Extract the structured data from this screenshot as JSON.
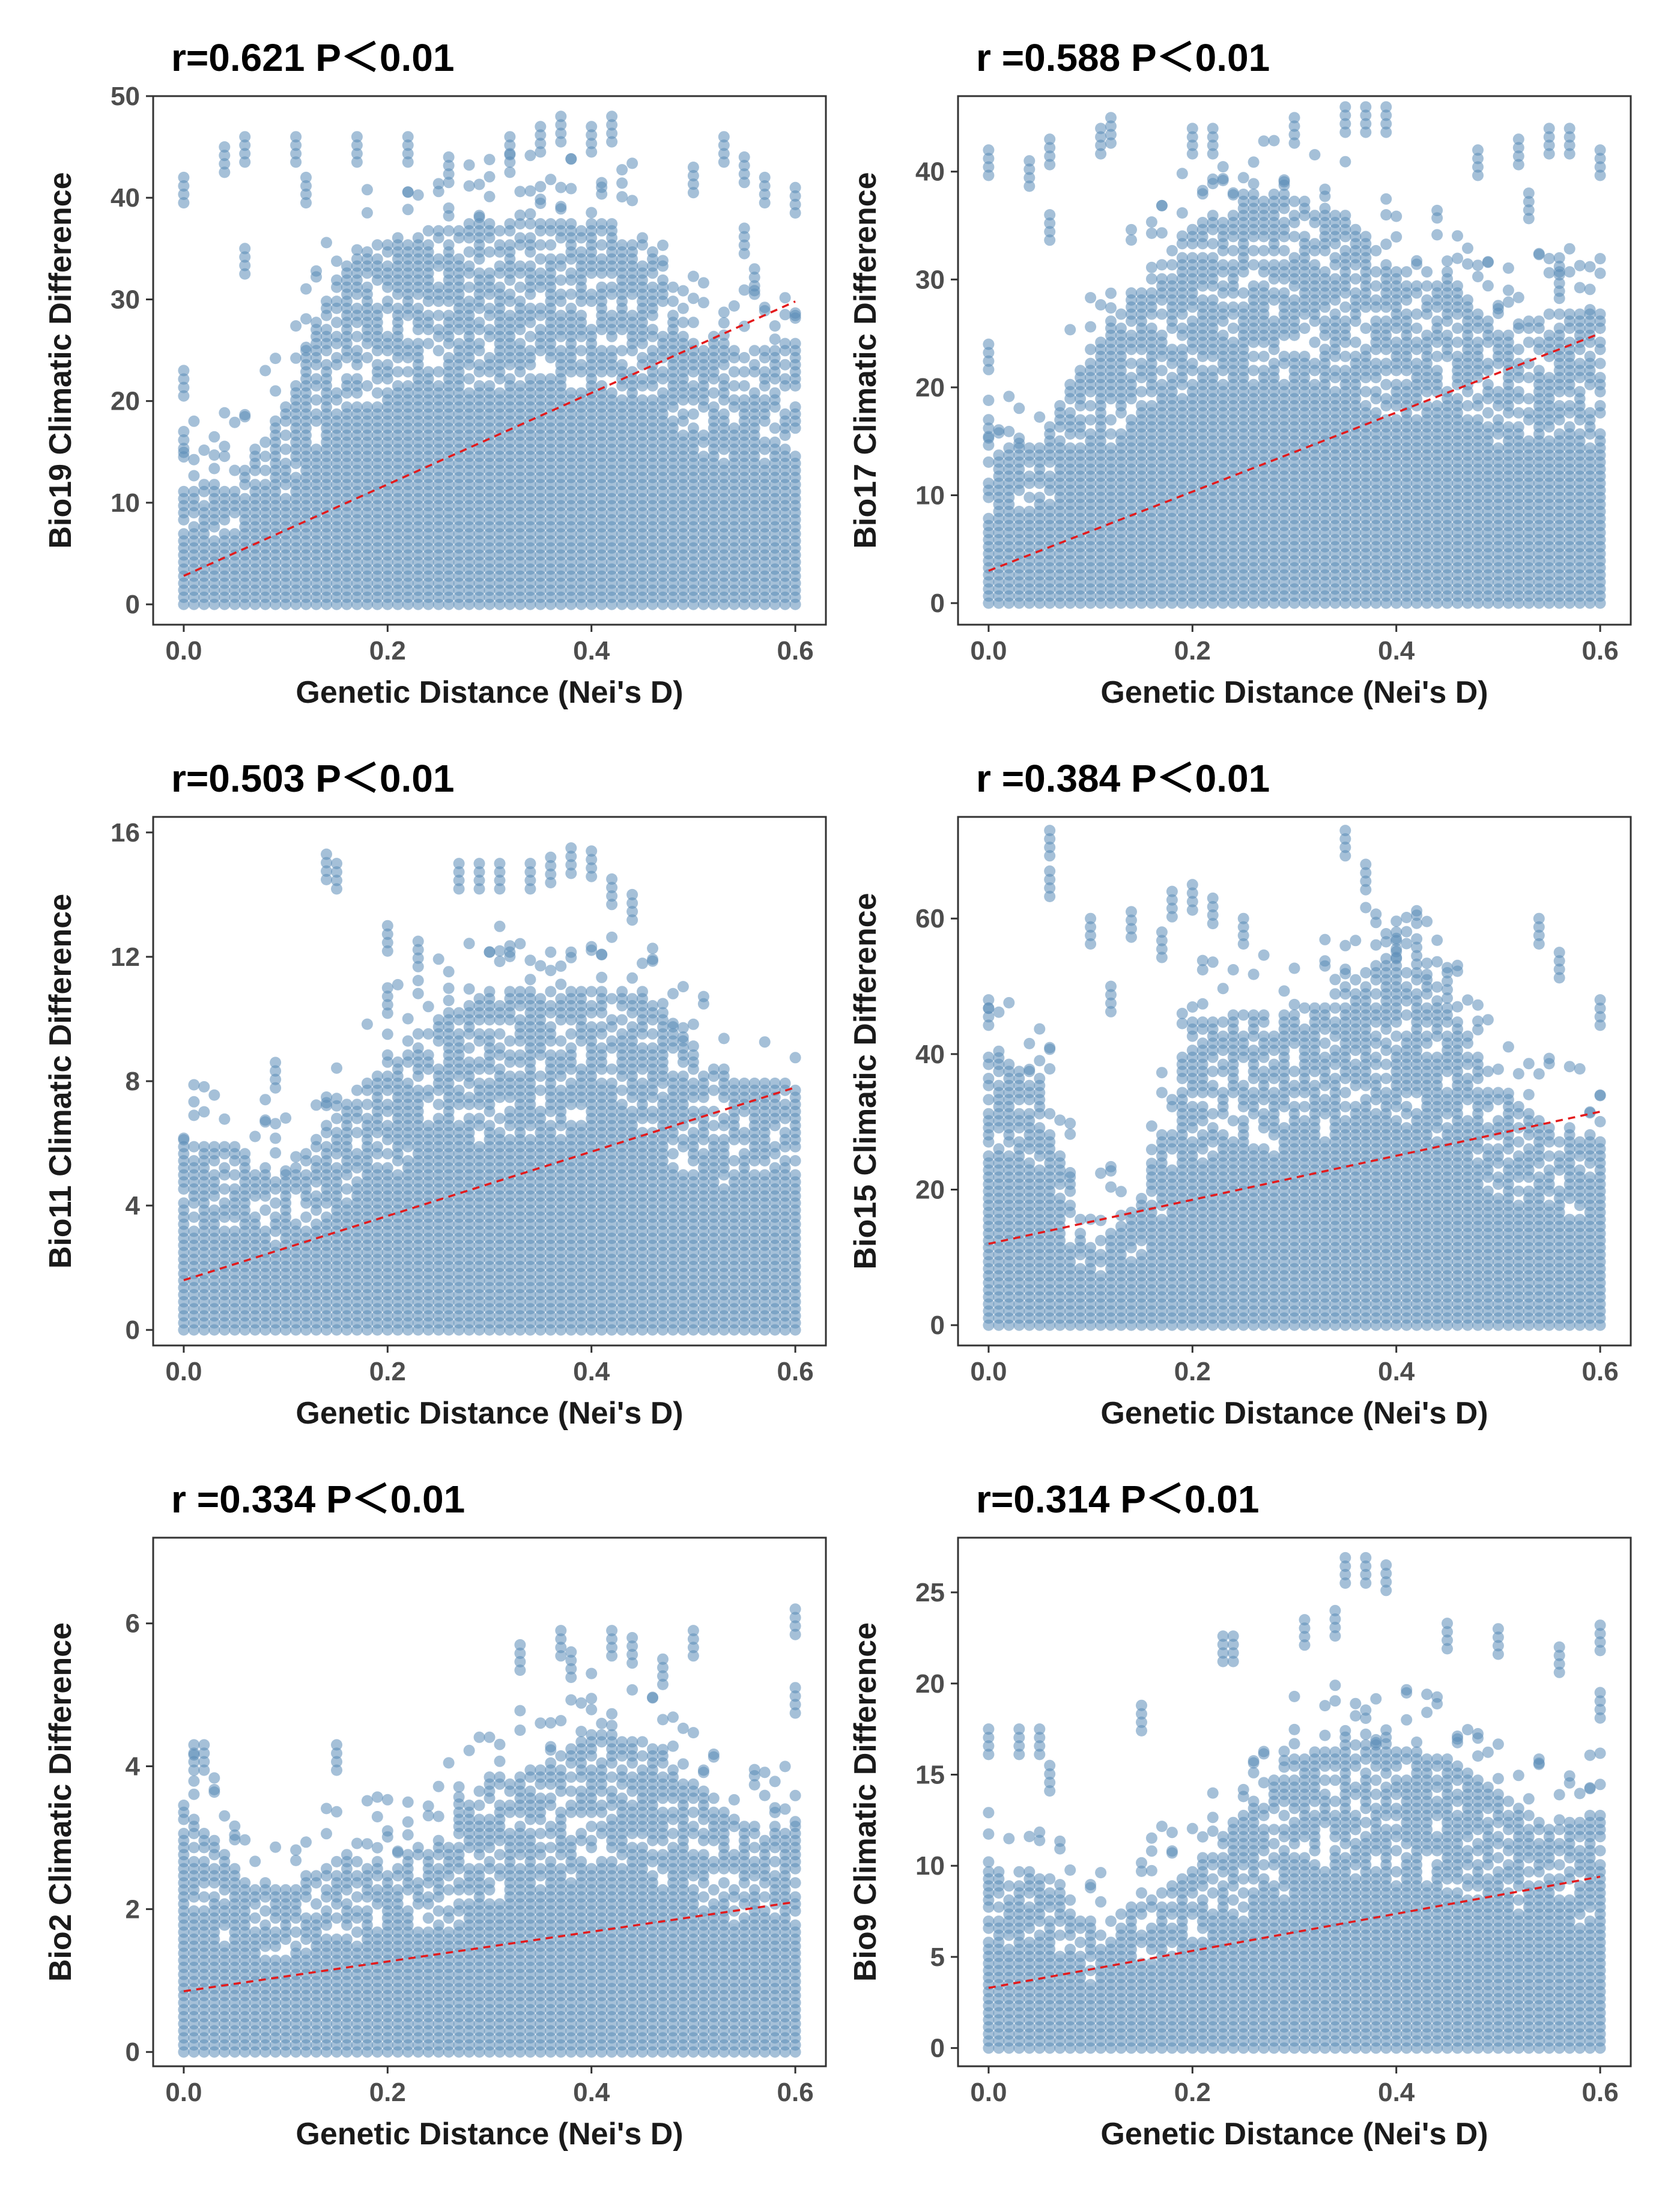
{
  "chart_data": [
    {
      "type": "scatter",
      "title": "r=0.621  P＜0.01",
      "xlabel": "Genetic Distance (Nei's D)",
      "ylabel": "Bio19 Climatic Difference",
      "xlim": [
        -0.03,
        0.63
      ],
      "ylim": [
        -2,
        50
      ],
      "xticks": [
        0.0,
        0.2,
        0.4,
        0.6
      ],
      "xtick_labels": [
        "0.0",
        "0.2",
        "0.4",
        "0.6"
      ],
      "yticks": [
        0,
        10,
        20,
        30,
        40,
        50
      ],
      "ytick_labels": [
        "0",
        "10",
        "20",
        "30",
        "40",
        "50"
      ],
      "point_color": "#5b8db8",
      "trend_color": "#e31a1c",
      "grid": false,
      "trend_line": {
        "x": [
          0.0,
          0.6
        ],
        "y": [
          2.8,
          29.8
        ]
      },
      "upper_envelope": [
        [
          0.0,
          12
        ],
        [
          0.05,
          13
        ],
        [
          0.1,
          20
        ],
        [
          0.15,
          33
        ],
        [
          0.2,
          36
        ],
        [
          0.25,
          37
        ],
        [
          0.3,
          38
        ],
        [
          0.35,
          38
        ],
        [
          0.4,
          38
        ],
        [
          0.45,
          37
        ],
        [
          0.5,
          28
        ],
        [
          0.55,
          25
        ],
        [
          0.6,
          26
        ]
      ],
      "outliers": [
        [
          0.0,
          42
        ],
        [
          0.0,
          23
        ],
        [
          0.0,
          17
        ],
        [
          0.04,
          45
        ],
        [
          0.06,
          46
        ],
        [
          0.06,
          35
        ],
        [
          0.11,
          46
        ],
        [
          0.12,
          42
        ],
        [
          0.17,
          46
        ],
        [
          0.22,
          46
        ],
        [
          0.26,
          44
        ],
        [
          0.32,
          46
        ],
        [
          0.35,
          47
        ],
        [
          0.37,
          48
        ],
        [
          0.4,
          47
        ],
        [
          0.42,
          48
        ],
        [
          0.5,
          43
        ],
        [
          0.53,
          46
        ],
        [
          0.55,
          44
        ],
        [
          0.57,
          42
        ],
        [
          0.6,
          41
        ],
        [
          0.55,
          37
        ],
        [
          0.56,
          33
        ]
      ]
    },
    {
      "type": "scatter",
      "title": "r =0.588  P＜0.01",
      "xlabel": "Genetic Distance (Nei's D)",
      "ylabel": "Bio17 Climatic Difference",
      "xlim": [
        -0.03,
        0.63
      ],
      "ylim": [
        -2,
        47
      ],
      "xticks": [
        0.0,
        0.2,
        0.4,
        0.6
      ],
      "xtick_labels": [
        "0.0",
        "0.2",
        "0.4",
        "0.6"
      ],
      "yticks": [
        0,
        10,
        20,
        30,
        40
      ],
      "ytick_labels": [
        "0",
        "10",
        "20",
        "30",
        "40"
      ],
      "point_color": "#5b8db8",
      "trend_color": "#e31a1c",
      "grid": false,
      "trend_line": {
        "x": [
          0.0,
          0.6
        ],
        "y": [
          3.0,
          25.0
        ]
      },
      "upper_envelope": [
        [
          0.0,
          14
        ],
        [
          0.05,
          15
        ],
        [
          0.1,
          24
        ],
        [
          0.15,
          30
        ],
        [
          0.2,
          35
        ],
        [
          0.25,
          38
        ],
        [
          0.3,
          38
        ],
        [
          0.35,
          36
        ],
        [
          0.4,
          31
        ],
        [
          0.45,
          31
        ],
        [
          0.5,
          25
        ],
        [
          0.55,
          27
        ],
        [
          0.6,
          27
        ]
      ],
      "outliers": [
        [
          0.0,
          42
        ],
        [
          0.0,
          24
        ],
        [
          0.0,
          17
        ],
        [
          0.04,
          41
        ],
        [
          0.06,
          43
        ],
        [
          0.06,
          36
        ],
        [
          0.11,
          44
        ],
        [
          0.12,
          45
        ],
        [
          0.2,
          44
        ],
        [
          0.22,
          44
        ],
        [
          0.3,
          45
        ],
        [
          0.35,
          46
        ],
        [
          0.37,
          46
        ],
        [
          0.39,
          46
        ],
        [
          0.48,
          42
        ],
        [
          0.52,
          43
        ],
        [
          0.55,
          44
        ],
        [
          0.57,
          44
        ],
        [
          0.6,
          42
        ],
        [
          0.53,
          38
        ],
        [
          0.56,
          32
        ]
      ]
    },
    {
      "type": "scatter",
      "title": "r=0.503  P＜0.01",
      "xlabel": "Genetic Distance (Nei's D)",
      "ylabel": "Bio11 Climatic Difference",
      "xlim": [
        -0.03,
        0.63
      ],
      "ylim": [
        -0.5,
        16.5
      ],
      "xticks": [
        0.0,
        0.2,
        0.4,
        0.6
      ],
      "xtick_labels": [
        "0.0",
        "0.2",
        "0.4",
        "0.6"
      ],
      "yticks": [
        0,
        4,
        8,
        12,
        16
      ],
      "ytick_labels": [
        "0",
        "4",
        "8",
        "12",
        "16"
      ],
      "point_color": "#5b8db8",
      "trend_color": "#e31a1c",
      "grid": false,
      "trend_line": {
        "x": [
          0.0,
          0.6
        ],
        "y": [
          1.6,
          7.8
        ]
      },
      "upper_envelope": [
        [
          0.0,
          6
        ],
        [
          0.05,
          6
        ],
        [
          0.1,
          5
        ],
        [
          0.15,
          7
        ],
        [
          0.2,
          9
        ],
        [
          0.25,
          10
        ],
        [
          0.3,
          11
        ],
        [
          0.35,
          11
        ],
        [
          0.4,
          11
        ],
        [
          0.45,
          11
        ],
        [
          0.5,
          9
        ],
        [
          0.55,
          8
        ],
        [
          0.6,
          8
        ]
      ],
      "outliers": [
        [
          0.14,
          15.3
        ],
        [
          0.15,
          15.0
        ],
        [
          0.2,
          13
        ],
        [
          0.27,
          15
        ],
        [
          0.29,
          15
        ],
        [
          0.31,
          15
        ],
        [
          0.34,
          15
        ],
        [
          0.36,
          15.2
        ],
        [
          0.38,
          15.5
        ],
        [
          0.4,
          15.4
        ],
        [
          0.42,
          14.5
        ],
        [
          0.44,
          14
        ],
        [
          0.09,
          8.6
        ],
        [
          0.2,
          11
        ],
        [
          0.23,
          12.5
        ]
      ]
    },
    {
      "type": "scatter",
      "title": "r =0.384  P＜0.01",
      "xlabel": "Genetic Distance (Nei's D)",
      "ylabel": "Bio15 Climatic Difference",
      "xlim": [
        -0.03,
        0.63
      ],
      "ylim": [
        -3,
        75
      ],
      "xticks": [
        0.0,
        0.2,
        0.4,
        0.6
      ],
      "xtick_labels": [
        "0.0",
        "0.2",
        "0.4",
        "0.6"
      ],
      "yticks": [
        0,
        20,
        40,
        60
      ],
      "ytick_labels": [
        "0",
        "20",
        "40",
        "60"
      ],
      "point_color": "#5b8db8",
      "trend_color": "#e31a1c",
      "grid": false,
      "trend_line": {
        "x": [
          0.0,
          0.6
        ],
        "y": [
          12.0,
          31.5
        ]
      },
      "upper_envelope": [
        [
          0.0,
          40
        ],
        [
          0.05,
          37
        ],
        [
          0.1,
          12
        ],
        [
          0.15,
          18
        ],
        [
          0.2,
          45
        ],
        [
          0.25,
          46
        ],
        [
          0.3,
          46
        ],
        [
          0.35,
          50
        ],
        [
          0.4,
          56
        ],
        [
          0.45,
          48
        ],
        [
          0.5,
          35
        ],
        [
          0.55,
          30
        ],
        [
          0.6,
          28
        ]
      ],
      "outliers": [
        [
          0.06,
          73
        ],
        [
          0.06,
          67
        ],
        [
          0.1,
          60
        ],
        [
          0.14,
          61
        ],
        [
          0.18,
          64
        ],
        [
          0.2,
          65
        ],
        [
          0.22,
          63
        ],
        [
          0.25,
          60
        ],
        [
          0.35,
          73
        ],
        [
          0.37,
          68
        ],
        [
          0.4,
          58
        ],
        [
          0.42,
          57
        ],
        [
          0.45,
          52
        ],
        [
          0.54,
          60
        ],
        [
          0.56,
          55
        ],
        [
          0.6,
          48
        ],
        [
          0.0,
          48
        ],
        [
          0.12,
          50
        ],
        [
          0.17,
          58
        ]
      ]
    },
    {
      "type": "scatter",
      "title": "r =0.334  P＜0.01",
      "xlabel": "Genetic Distance (Nei's D)",
      "ylabel": "Bio2 Climatic Difference",
      "xlim": [
        -0.03,
        0.63
      ],
      "ylim": [
        -0.2,
        7.2
      ],
      "xticks": [
        0.0,
        0.2,
        0.4,
        0.6
      ],
      "xtick_labels": [
        "0.0",
        "0.2",
        "0.4",
        "0.6"
      ],
      "yticks": [
        0,
        2,
        4,
        6
      ],
      "ytick_labels": [
        "0",
        "2",
        "4",
        "6"
      ],
      "point_color": "#5b8db8",
      "trend_color": "#e31a1c",
      "grid": false,
      "trend_line": {
        "x": [
          0.0,
          0.6
        ],
        "y": [
          0.85,
          2.1
        ]
      },
      "upper_envelope": [
        [
          0.0,
          3.5
        ],
        [
          0.05,
          2.6
        ],
        [
          0.1,
          2.3
        ],
        [
          0.15,
          2.8
        ],
        [
          0.2,
          2.7
        ],
        [
          0.25,
          3.0
        ],
        [
          0.3,
          3.9
        ],
        [
          0.35,
          4.0
        ],
        [
          0.4,
          4.5
        ],
        [
          0.45,
          4.4
        ],
        [
          0.5,
          3.8
        ],
        [
          0.55,
          3.2
        ],
        [
          0.6,
          3.2
        ]
      ],
      "outliers": [
        [
          0.01,
          4.3
        ],
        [
          0.02,
          4.3
        ],
        [
          0.15,
          4.3
        ],
        [
          0.33,
          5.7
        ],
        [
          0.37,
          5.9
        ],
        [
          0.42,
          5.9
        ],
        [
          0.44,
          5.8
        ],
        [
          0.5,
          5.9
        ],
        [
          0.6,
          6.2
        ],
        [
          0.6,
          5.1
        ],
        [
          0.38,
          5.6
        ],
        [
          0.47,
          5.5
        ]
      ]
    },
    {
      "type": "scatter",
      "title": "r=0.314  P＜0.01",
      "xlabel": "Genetic Distance (Nei's D)",
      "ylabel": "Bio9 Climatic Difference",
      "xlim": [
        -0.03,
        0.63
      ],
      "ylim": [
        -1,
        28
      ],
      "xticks": [
        0.0,
        0.2,
        0.4,
        0.6
      ],
      "xtick_labels": [
        "0.0",
        "0.2",
        "0.4",
        "0.6"
      ],
      "yticks": [
        0,
        5,
        10,
        15,
        20,
        25
      ],
      "ytick_labels": [
        "0",
        "5",
        "10",
        "15",
        "20",
        "25"
      ],
      "point_color": "#5b8db8",
      "trend_color": "#e31a1c",
      "grid": false,
      "trend_line": {
        "x": [
          0.0,
          0.6
        ],
        "y": [
          3.3,
          9.4
        ]
      },
      "upper_envelope": [
        [
          0.0,
          10
        ],
        [
          0.05,
          10
        ],
        [
          0.1,
          7
        ],
        [
          0.15,
          8
        ],
        [
          0.2,
          10
        ],
        [
          0.25,
          13
        ],
        [
          0.3,
          16
        ],
        [
          0.35,
          17
        ],
        [
          0.4,
          16.5
        ],
        [
          0.45,
          16
        ],
        [
          0.5,
          14
        ],
        [
          0.55,
          12
        ],
        [
          0.6,
          13
        ]
      ],
      "outliers": [
        [
          0.0,
          17.5
        ],
        [
          0.03,
          17.5
        ],
        [
          0.05,
          17.5
        ],
        [
          0.15,
          18.8
        ],
        [
          0.23,
          22.6
        ],
        [
          0.24,
          22.6
        ],
        [
          0.31,
          23.5
        ],
        [
          0.35,
          26.9
        ],
        [
          0.37,
          26.9
        ],
        [
          0.39,
          26.5
        ],
        [
          0.45,
          23.3
        ],
        [
          0.5,
          23
        ],
        [
          0.56,
          22
        ],
        [
          0.6,
          23.2
        ],
        [
          0.6,
          19.5
        ],
        [
          0.06,
          15.5
        ],
        [
          0.34,
          24
        ]
      ]
    }
  ]
}
